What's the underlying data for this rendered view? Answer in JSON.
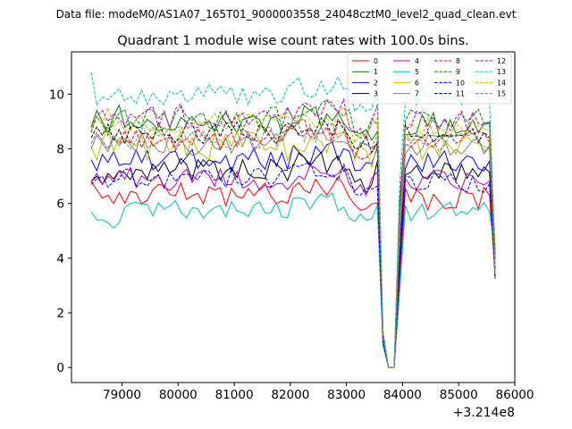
{
  "figure": {
    "suptitle": "Data file: modeM0/AS1A07_165T01_9000003558_24048cztM0_level2_quad_clean.evt"
  },
  "chart_data": {
    "type": "line",
    "title": "Quadrant 1 module wise count rates with 100.0s bins.",
    "xlabel": "",
    "ylabel": "",
    "x_offset_label": "+3.214e8",
    "xlim": [
      78100,
      86000
    ],
    "ylim": [
      -0.55,
      11.55
    ],
    "x_ticks": [
      79000,
      80000,
      81000,
      82000,
      83000,
      84000,
      85000,
      86000
    ],
    "x_tick_labels": [
      "79000",
      "80000",
      "81000",
      "82000",
      "83000",
      "84000",
      "85000",
      "86000"
    ],
    "y_ticks": [
      0,
      2,
      4,
      6,
      8,
      10
    ],
    "y_tick_labels": [
      "0",
      "2",
      "4",
      "6",
      "8",
      "10"
    ],
    "grid": false,
    "legend_placement": "top-right",
    "legend_columns": 4,
    "gap": {
      "start": 83550,
      "end": 83950,
      "low_x": [
        83650,
        83750,
        83850
      ],
      "low_y": [
        1.1,
        0.0,
        0.0
      ]
    },
    "x_segments": [
      {
        "start": 78450,
        "end": 83550,
        "step": 100
      },
      {
        "start": 83950,
        "end": 85650,
        "step": 100
      }
    ],
    "series": [
      {
        "name": "0",
        "color": "#ff0000",
        "dash": "solid",
        "base": 6.3,
        "amp": 0.45,
        "seed": 1,
        "pre": [
          6.8,
          6.5,
          6.2,
          6.3,
          6.0,
          6.4
        ]
      },
      {
        "name": "1",
        "color": "#008000",
        "dash": "solid",
        "base": 9.0,
        "amp": 0.45,
        "seed": 2,
        "pre": [
          8.8,
          9.4,
          9.0,
          8.6,
          9.2,
          9.6
        ]
      },
      {
        "name": "2",
        "color": "#0000ff",
        "dash": "solid",
        "base": 7.6,
        "amp": 0.45,
        "seed": 3,
        "pre": [
          7.6,
          7.2,
          7.8,
          7.5,
          7.9,
          7.4
        ]
      },
      {
        "name": "3",
        "color": "#000000",
        "dash": "solid",
        "base": 7.2,
        "amp": 0.45,
        "seed": 4,
        "pre": [
          6.8,
          7.0,
          6.7,
          7.1,
          6.9,
          7.2
        ]
      },
      {
        "name": "4",
        "color": "#bf00bf",
        "dash": "solid",
        "base": 6.9,
        "amp": 0.45,
        "seed": 5,
        "pre": [
          6.8,
          7.1,
          6.7,
          7.0,
          6.8,
          7.2
        ]
      },
      {
        "name": "5",
        "color": "#00bfbf",
        "dash": "solid",
        "base": 5.8,
        "amp": 0.35,
        "seed": 6,
        "pre": [
          5.7,
          5.4,
          5.4,
          5.3,
          5.1,
          5.3
        ]
      },
      {
        "name": "6",
        "color": "#bfbf00",
        "dash": "solid",
        "base": 8.1,
        "amp": 0.55,
        "seed": 7,
        "pre": [
          8.1,
          7.6,
          8.3,
          8.8,
          7.9,
          8.4
        ]
      },
      {
        "name": "7",
        "color": "#808080",
        "dash": "solid",
        "base": 8.2,
        "amp": 0.45,
        "seed": 8,
        "pre": [
          8.0,
          8.5,
          8.2,
          7.9,
          8.4,
          8.1
        ]
      },
      {
        "name": "8",
        "color": "#ff0000",
        "dash": "dashed",
        "base": 8.4,
        "amp": 0.45,
        "seed": 9,
        "pre": [
          8.2,
          8.6,
          8.3,
          8.0,
          8.5,
          8.2
        ]
      },
      {
        "name": "9",
        "color": "#008000",
        "dash": "dashed",
        "base": 9.1,
        "amp": 0.45,
        "seed": 10,
        "pre": [
          8.6,
          9.2,
          8.9,
          8.5,
          9.0,
          9.3
        ]
      },
      {
        "name": "10",
        "color": "#0000ff",
        "dash": "dashed",
        "base": 6.9,
        "amp": 0.4,
        "seed": 11,
        "pre": [
          6.7,
          6.9,
          7.0,
          6.6,
          6.8,
          6.9
        ]
      },
      {
        "name": "11",
        "color": "#000000",
        "dash": "dashed",
        "base": 8.6,
        "amp": 0.45,
        "seed": 12,
        "pre": [
          8.4,
          8.8,
          8.5,
          8.9,
          8.3,
          8.7
        ]
      },
      {
        "name": "12",
        "color": "#bf00bf",
        "dash": "dashed",
        "base": 9.2,
        "amp": 0.45,
        "seed": 13,
        "pre": [
          8.8,
          9.2,
          9.4,
          9.0,
          9.3,
          9.1
        ]
      },
      {
        "name": "13",
        "color": "#00bfbf",
        "dash": "dashed",
        "base": 10.0,
        "amp": 0.4,
        "seed": 14,
        "pre": [
          10.8,
          9.6,
          9.9,
          9.8,
          10.0,
          10.2
        ]
      },
      {
        "name": "14",
        "color": "#bfbf00",
        "dash": "dashed",
        "base": 8.9,
        "amp": 0.45,
        "seed": 15,
        "pre": [
          8.7,
          9.2,
          8.9,
          9.5,
          8.8,
          9.0
        ]
      },
      {
        "name": "15",
        "color": "#808080",
        "dash": "dashed",
        "base": 8.4,
        "amp": 0.45,
        "seed": 16,
        "pre": [
          8.2,
          8.6,
          8.3,
          8.0,
          8.5,
          8.2
        ]
      }
    ]
  }
}
